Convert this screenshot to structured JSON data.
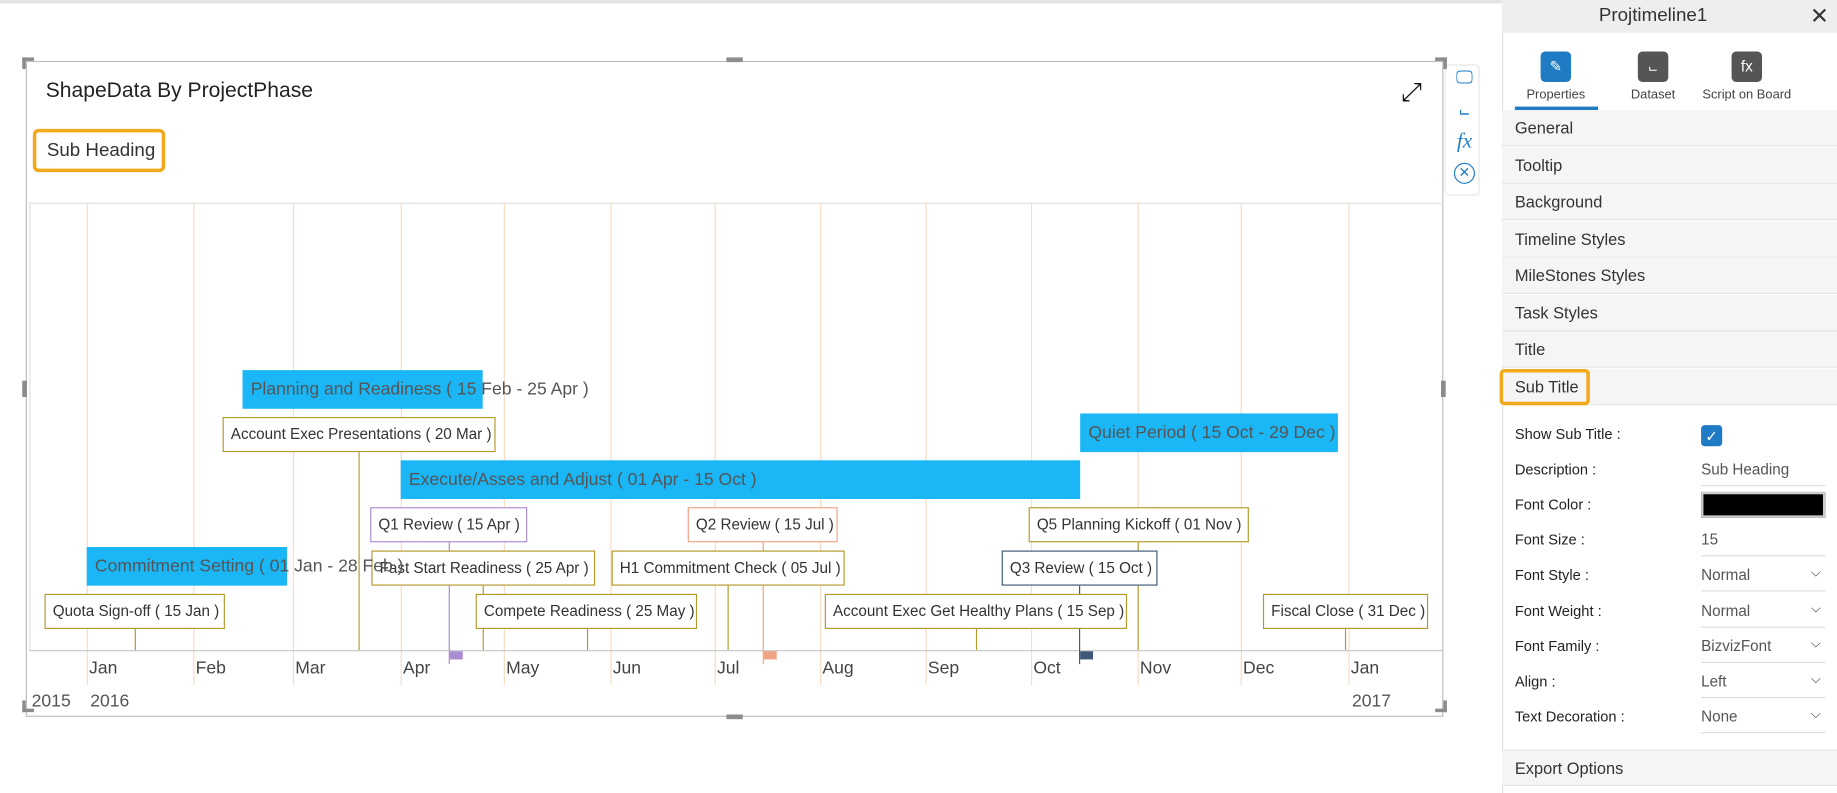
{
  "chart": {
    "title": "ShapeData By ProjectPhase",
    "subtitle": "Sub Heading",
    "months": [
      "Jan",
      "Feb",
      "Mar",
      "Apr",
      "May",
      "Jun",
      "Jul",
      "Aug",
      "Sep",
      "Oct",
      "Nov",
      "Dec",
      "Jan"
    ],
    "years": [
      "2015",
      "2016",
      "2017"
    ],
    "phase_color": "#1ab6f5",
    "phases": [
      "Planning and Readiness ( 15 Feb - 25 Apr )",
      "Quiet Period ( 15 Oct - 29 Dec )",
      "Execute/Asses and Adjust ( 01 Apr - 15 Oct )",
      "Commitment Setting ( 01 Jan - 28 Feb )"
    ],
    "milestones": [
      {
        "label": "Account Exec Presentations ( 20 Mar )",
        "color": "#b39a2e"
      },
      {
        "label": "Q1 Review ( 15 Apr )",
        "color": "#a98bd3"
      },
      {
        "label": "Q2 Review ( 15 Jul )",
        "color": "#f0a382"
      },
      {
        "label": "Q5 Planning Kickoff ( 01 Nov )",
        "color": "#b39a2e"
      },
      {
        "label": "Fast Start Readiness ( 25 Apr )",
        "color": "#b39a2e"
      },
      {
        "label": "H1 Commitment Check ( 05 Jul )",
        "color": "#b39a2e"
      },
      {
        "label": "Q3 Review ( 15 Oct )",
        "color": "#3f5a78"
      },
      {
        "label": "Quota Sign-off ( 15 Jan )",
        "color": "#b39a2e"
      },
      {
        "label": "Compete Readiness ( 25 May )",
        "color": "#b39a2e"
      },
      {
        "label": "Account Exec Get Healthy Plans ( 15 Sep )",
        "color": "#b39a2e"
      },
      {
        "label": "Fiscal Close ( 31 Dec )",
        "color": "#b39a2e"
      }
    ]
  },
  "panel": {
    "title": "Projtimeline1",
    "tabs": [
      "Properties",
      "Dataset",
      "Script on Board"
    ],
    "sections": [
      "General",
      "Tooltip",
      "Background",
      "Timeline Styles",
      "MileStones Styles",
      "Task Styles",
      "Title",
      "Sub Title"
    ],
    "properties": [
      {
        "label": "Show Sub Title :",
        "checked": true
      },
      {
        "label": "Description :",
        "value": "Sub Heading"
      },
      {
        "label": "Font Color :",
        "color": "#000000"
      },
      {
        "label": "Font Size :",
        "value": "15"
      },
      {
        "label": "Font Style :",
        "value": "Normal"
      },
      {
        "label": "Font Weight :",
        "value": "Normal"
      },
      {
        "label": "Font Family :",
        "value": "BizvizFont"
      },
      {
        "label": "Align :",
        "value": "Left"
      },
      {
        "label": "Text Decoration :",
        "value": "None"
      }
    ],
    "footer": "Export Options"
  }
}
